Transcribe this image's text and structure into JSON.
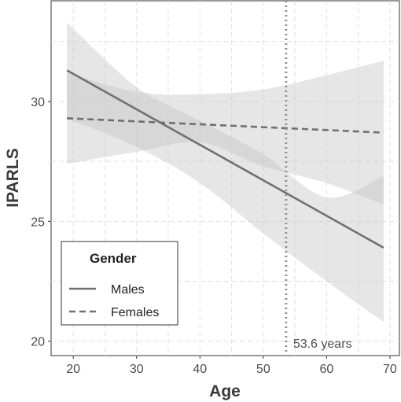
{
  "chart_data": {
    "type": "line",
    "title": "",
    "xlabel": "Age",
    "ylabel": "IPARLS",
    "xlim": [
      16.5,
      71.5
    ],
    "ylim": [
      19.4,
      34.2
    ],
    "x_ticks": [
      20,
      30,
      40,
      50,
      60,
      70
    ],
    "y_ticks": [
      20,
      25,
      30
    ],
    "grid": true,
    "legend": {
      "title": "Gender",
      "position": "bottom-left",
      "entries": [
        "Males",
        "Females"
      ]
    },
    "series": [
      {
        "name": "Males",
        "line_style": "solid",
        "x": [
          19,
          69
        ],
        "y": [
          31.3,
          23.9
        ],
        "ci_x": [
          19,
          30,
          40,
          50,
          60,
          69
        ],
        "ci_lower": [
          29.3,
          28.1,
          26.6,
          24.5,
          22.5,
          20.8
        ],
        "ci_upper": [
          33.3,
          30.6,
          29.2,
          27.8,
          26.0,
          26.9
        ]
      },
      {
        "name": "Females",
        "line_style": "dashed",
        "x": [
          19,
          69
        ],
        "y": [
          29.3,
          28.7
        ],
        "ci_x": [
          19,
          30,
          40,
          50,
          60,
          69
        ],
        "ci_lower": [
          27.4,
          27.9,
          28.3,
          27.3,
          26.6,
          25.7
        ],
        "ci_upper": [
          31.2,
          30.4,
          30.3,
          30.5,
          31.1,
          31.7
        ]
      }
    ],
    "reference_line": {
      "x": 53.6,
      "style": "dotted",
      "label": "53.6 years"
    },
    "colors": {
      "line": "#707070",
      "ribbon": "#c4c4c4",
      "reference": "#909090",
      "grid": "#e0e0e0",
      "frame": "#333333"
    }
  }
}
